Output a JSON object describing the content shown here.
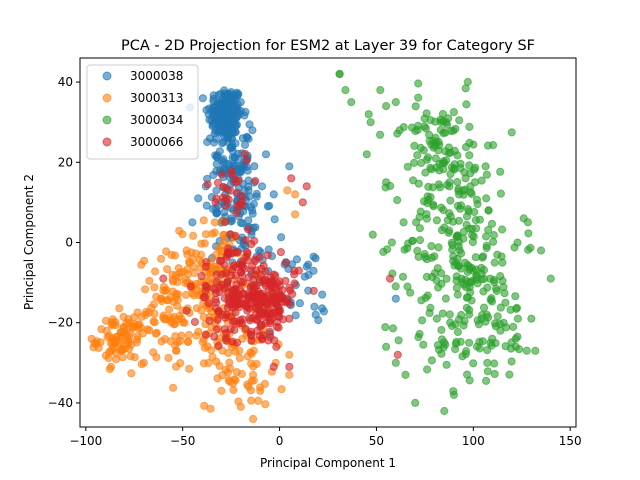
{
  "chart_data": {
    "type": "scatter",
    "title": "PCA - 2D Projection for ESM2 at Layer 39 for Category SF",
    "xlabel": "Principal Component 1",
    "ylabel": "Principal Component 2",
    "xlim": [
      -103,
      153
    ],
    "ylim": [
      -46,
      46
    ],
    "xticks": [
      -100,
      -50,
      0,
      50,
      100,
      150
    ],
    "yticks": [
      -40,
      -20,
      0,
      20,
      40
    ],
    "legend_position": "upper-left",
    "grid": false,
    "series": [
      {
        "name": "3000038",
        "color": "#1f77b4",
        "clusters": [
          {
            "cx": -28,
            "cy": 32,
            "sx": 4.5,
            "sy": 3.5,
            "n": 170
          },
          {
            "cx": -25,
            "cy": 20,
            "sx": 5,
            "sy": 5,
            "n": 90
          },
          {
            "cx": -20,
            "cy": 9,
            "sx": 7,
            "sy": 5,
            "n": 60
          },
          {
            "cx": -18,
            "cy": -2,
            "sx": 8,
            "sy": 4,
            "n": 30
          },
          {
            "cx": 8,
            "cy": -12,
            "sx": 8,
            "sy": 6,
            "n": 25
          }
        ],
        "points": [
          [
            -16,
            13
          ],
          [
            -42,
            11
          ],
          [
            -45,
            5
          ],
          [
            -3,
            12
          ],
          [
            -20,
            35
          ],
          [
            -14,
            28
          ],
          [
            -7,
            22
          ],
          [
            5,
            19
          ],
          [
            14,
            -6
          ],
          [
            22,
            -13
          ],
          [
            18,
            -16
          ],
          [
            -19,
            26
          ],
          [
            -6,
            9
          ],
          [
            -38,
            14
          ],
          [
            60,
            -14
          ]
        ]
      },
      {
        "name": "3000313",
        "color": "#ff7f0e",
        "clusters": [
          {
            "cx": -82,
            "cy": -24,
            "sx": 6,
            "sy": 3,
            "n": 85
          },
          {
            "cx": -55,
            "cy": -17,
            "sx": 9,
            "sy": 7,
            "n": 90
          },
          {
            "cx": -35,
            "cy": -7,
            "sx": 8,
            "sy": 6,
            "n": 110
          },
          {
            "cx": -30,
            "cy": -26,
            "sx": 12,
            "sy": 6,
            "n": 60
          },
          {
            "cx": -18,
            "cy": -33,
            "sx": 10,
            "sy": 4,
            "n": 35
          }
        ],
        "points": [
          [
            -20,
            -41
          ],
          [
            -30,
            -37
          ],
          [
            -10,
            -37
          ],
          [
            5,
            -33
          ],
          [
            4,
            13
          ],
          [
            8,
            12
          ],
          [
            8,
            7
          ],
          [
            -70,
            -30
          ],
          [
            -97,
            -24
          ],
          [
            -2,
            -30
          ],
          [
            5,
            -28
          ],
          [
            -48,
            -2
          ],
          [
            -60,
            -12
          ]
        ]
      },
      {
        "name": "3000034",
        "color": "#2ca02c",
        "clusters": [
          {
            "cx": 85,
            "cy": 18,
            "sx": 13,
            "sy": 9,
            "n": 110
          },
          {
            "cx": 95,
            "cy": 0,
            "sx": 15,
            "sy": 8,
            "n": 120
          },
          {
            "cx": 100,
            "cy": -20,
            "sx": 17,
            "sy": 8,
            "n": 130
          },
          {
            "cx": 80,
            "cy": 27,
            "sx": 6,
            "sy": 3,
            "n": 25
          }
        ],
        "points": [
          [
            31,
            42
          ],
          [
            31,
            42
          ],
          [
            34,
            38
          ],
          [
            37,
            35
          ],
          [
            46,
            32
          ],
          [
            52,
            38
          ],
          [
            55,
            34
          ],
          [
            60,
            35
          ],
          [
            62,
            28
          ],
          [
            70,
            -40
          ],
          [
            85,
            -42
          ],
          [
            90,
            -38
          ],
          [
            65,
            -33
          ],
          [
            60,
            -30
          ],
          [
            55,
            -26
          ],
          [
            122,
            -26
          ],
          [
            132,
            -27
          ],
          [
            130,
            -19
          ],
          [
            140,
            -9
          ],
          [
            135,
            -2
          ],
          [
            126,
            6
          ],
          [
            115,
            -5
          ],
          [
            55,
            15
          ],
          [
            45,
            22
          ],
          [
            47,
            30
          ],
          [
            64,
            5
          ],
          [
            58,
            0
          ]
        ]
      },
      {
        "name": "3000066",
        "color": "#d62728",
        "clusters": [
          {
            "cx": -8,
            "cy": -14,
            "sx": 8,
            "sy": 4.5,
            "n": 200
          },
          {
            "cx": -28,
            "cy": -14,
            "sx": 8,
            "sy": 5,
            "n": 80
          },
          {
            "cx": -20,
            "cy": -4,
            "sx": 5,
            "sy": 4,
            "n": 30
          },
          {
            "cx": -25,
            "cy": 14,
            "sx": 5,
            "sy": 5,
            "n": 28
          }
        ],
        "points": [
          [
            -60,
            -9
          ],
          [
            -48,
            -17
          ],
          [
            -38,
            -23
          ],
          [
            -3,
            -31
          ],
          [
            5,
            -31
          ],
          [
            12,
            10
          ],
          [
            14,
            14
          ],
          [
            6,
            16
          ],
          [
            -33,
            10
          ],
          [
            57,
            -9
          ],
          [
            61,
            -28
          ],
          [
            10,
            -7
          ]
        ]
      }
    ]
  }
}
